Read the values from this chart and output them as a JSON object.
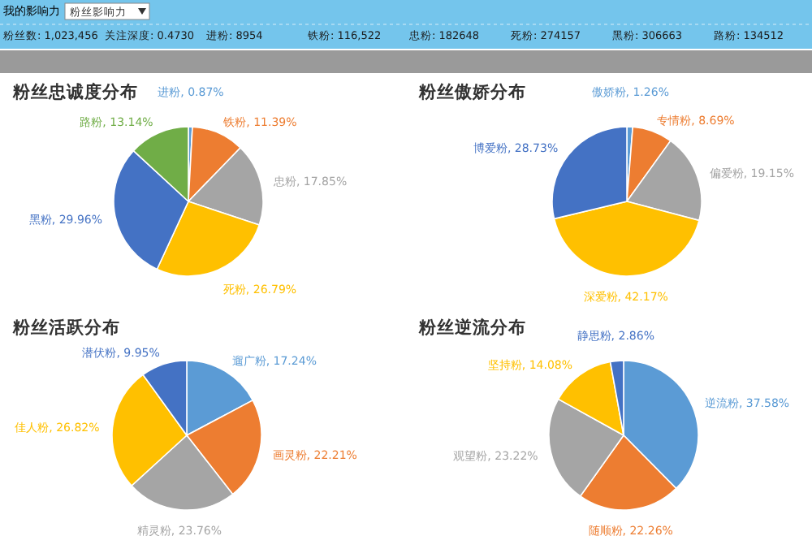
{
  "chart_data": [
    {
      "type": "other",
      "title": "我的影响力",
      "annotations": [
        "粉丝影响力",
        "粉丝数: 1,023,456",
        "关注深度: 0.4730",
        "进粉: 8954",
        "铁粉: 116,522",
        "忠粉: 182648",
        "死粉: 274157",
        "黑粉: 306663",
        "路粉: 134512"
      ]
    },
    {
      "type": "pie",
      "title": "粉丝忠诚度分布",
      "categories": [
        "进粉",
        "铁粉",
        "忠粉",
        "死粉",
        "黑粉",
        "路粉"
      ],
      "values": [
        0.87,
        11.39,
        17.85,
        26.79,
        29.96,
        13.14
      ],
      "value_labels": [
        ", 0.87%",
        ", 11.39%",
        ", 17.85%",
        ", 26.79%",
        ", 29.96%",
        ", 13.14%"
      ],
      "colors": [
        "#5b9bd5",
        "#ed7d31",
        "#a5a5a5",
        "#ffc000",
        "#4472c4",
        "#70ad47"
      ]
    },
    {
      "type": "pie",
      "title": "粉丝傲娇分布",
      "categories": [
        "傲娇粉",
        "专情粉",
        "偏爱粉",
        "深爱粉",
        "博爱粉"
      ],
      "values": [
        1.26,
        8.69,
        19.15,
        42.17,
        28.73
      ],
      "value_labels": [
        ", 1.26%",
        ", 8.69%",
        ", 19.15%",
        ", 42.17%",
        ", 28.73%"
      ],
      "colors": [
        "#5b9bd5",
        "#ed7d31",
        "#a5a5a5",
        "#ffc000",
        "#4472c4"
      ]
    },
    {
      "type": "pie",
      "title": "粉丝活跃分布",
      "categories": [
        "遛广粉",
        "画灵粉",
        "精灵粉",
        "佳人粉",
        "潜伏粉"
      ],
      "values": [
        17.24,
        22.21,
        23.76,
        26.82,
        9.95
      ],
      "value_labels": [
        ", 17.24%",
        ", 22.21%",
        ", 23.76%",
        ", 26.82%",
        ", 9.95%"
      ],
      "colors": [
        "#5b9bd5",
        "#ed7d31",
        "#a5a5a5",
        "#ffc000",
        "#4472c4"
      ]
    },
    {
      "type": "pie",
      "title": "粉丝逆流分布",
      "categories": [
        "逆流粉",
        "随顺粉",
        "观望粉",
        "坚持粉",
        "静思粉"
      ],
      "values": [
        37.58,
        22.26,
        23.22,
        14.08,
        2.86
      ],
      "value_labels": [
        ", 37.58%",
        ", 22.26%",
        ", 23.22%",
        ", 14.08%",
        ", 2.86%"
      ],
      "colors": [
        "#5b9bd5",
        "#ed7d31",
        "#a5a5a5",
        "#ffc000",
        "#4472c4"
      ]
    }
  ]
}
